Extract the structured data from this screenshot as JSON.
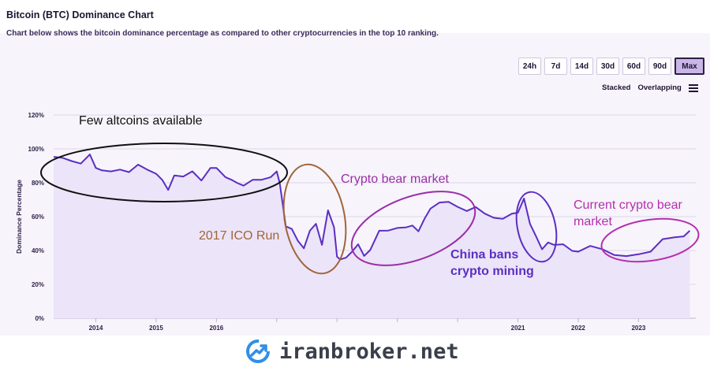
{
  "header": {
    "title": "Bitcoin (BTC) Dominance Chart",
    "subtitle": "Chart below shows the bitcoin dominance percentage as compared to other cryptocurrencies in the top 10 ranking."
  },
  "controls": {
    "ranges": [
      "24h",
      "7d",
      "14d",
      "30d",
      "60d",
      "90d",
      "Max"
    ],
    "active_range": "Max",
    "view_modes": [
      "Stacked",
      "Overlapping"
    ],
    "menu_icon": "hamburger-icon"
  },
  "footer": {
    "logo_icon": "trend-arrow-icon",
    "text": "iranbroker.net"
  },
  "chart_data": {
    "type": "area",
    "title": "Bitcoin (BTC) Dominance Chart",
    "ylabel": "Dominance Percentage",
    "xlabel": "",
    "ylim": [
      0,
      120
    ],
    "xlim": [
      2013.3,
      2023.95
    ],
    "yticks": [
      "0%",
      "20%",
      "40%",
      "60%",
      "80%",
      "100%",
      "120%"
    ],
    "xticks": [
      {
        "value": 2014,
        "label": "2014"
      },
      {
        "value": 2015,
        "label": "2015"
      },
      {
        "value": 2016,
        "label": "2016"
      },
      {
        "value": 2021,
        "label": "2021"
      },
      {
        "value": 2022,
        "label": "2022"
      },
      {
        "value": 2023,
        "label": "2023"
      }
    ],
    "grid": true,
    "colors": {
      "line": "#5a2fc2",
      "fill": "#ece4f8",
      "grid": "#ddd6e8"
    },
    "series": [
      {
        "x": [
          2013.3,
          2013.45,
          2013.6,
          2013.75,
          2013.9,
          2014.0,
          2014.1,
          2014.25,
          2014.4,
          2014.55,
          2014.7,
          2014.85,
          2015.0,
          2015.1,
          2015.2,
          2015.3,
          2015.45,
          2015.6,
          2015.75,
          2015.9,
          2016.0,
          2016.15,
          2016.25,
          2016.35,
          2016.45,
          2016.6,
          2016.75,
          2016.9,
          2017.0,
          2017.05,
          2017.15,
          2017.25,
          2017.35,
          2017.45,
          2017.55,
          2017.65,
          2017.75,
          2017.85,
          2017.95,
          2018.0,
          2018.05,
          2018.15,
          2018.25,
          2018.35,
          2018.45,
          2018.55,
          2018.7,
          2018.85,
          2019.0,
          2019.15,
          2019.25,
          2019.35,
          2019.45,
          2019.55,
          2019.7,
          2019.85,
          2020.0,
          2020.15,
          2020.3,
          2020.45,
          2020.6,
          2020.75,
          2020.9,
          2021.0,
          2021.1,
          2021.2,
          2021.3,
          2021.4,
          2021.5,
          2021.6,
          2021.75,
          2021.9,
          2022.0,
          2022.2,
          2022.4,
          2022.6,
          2022.8,
          2023.0,
          2023.2,
          2023.4,
          2023.6,
          2023.75,
          2023.85
        ],
        "y": [
          96,
          94,
          93,
          92,
          96,
          89,
          88,
          86,
          88,
          87,
          90,
          88,
          86,
          81,
          76,
          85,
          83,
          87,
          82,
          88,
          89,
          84,
          81,
          80,
          79,
          81,
          82,
          84,
          86,
          80,
          55,
          52,
          46,
          42,
          51,
          56,
          44,
          63,
          54,
          37,
          34,
          36,
          40,
          43,
          37,
          41,
          51,
          52,
          54,
          53,
          55,
          52,
          58,
          65,
          69,
          68,
          66,
          64,
          65,
          62,
          60,
          58,
          62,
          63,
          70,
          56,
          49,
          40,
          45,
          44,
          43,
          40,
          40,
          42,
          41,
          38,
          36,
          38,
          40,
          46,
          48,
          49,
          51
        ]
      }
    ],
    "annotations": [
      {
        "text": "Few altcoins available",
        "color": "#111111"
      },
      {
        "text": "2017 ICO Run",
        "color": "#a0653a"
      },
      {
        "text": "Crypto bear market",
        "color": "#9b2ea8"
      },
      {
        "text": "China bans",
        "color": "#5a2fc2"
      },
      {
        "text": "crypto mining",
        "color": "#5a2fc2"
      },
      {
        "text": "Current crypto bear",
        "color": "#b52fae"
      },
      {
        "text": "market",
        "color": "#b52fae"
      }
    ]
  }
}
